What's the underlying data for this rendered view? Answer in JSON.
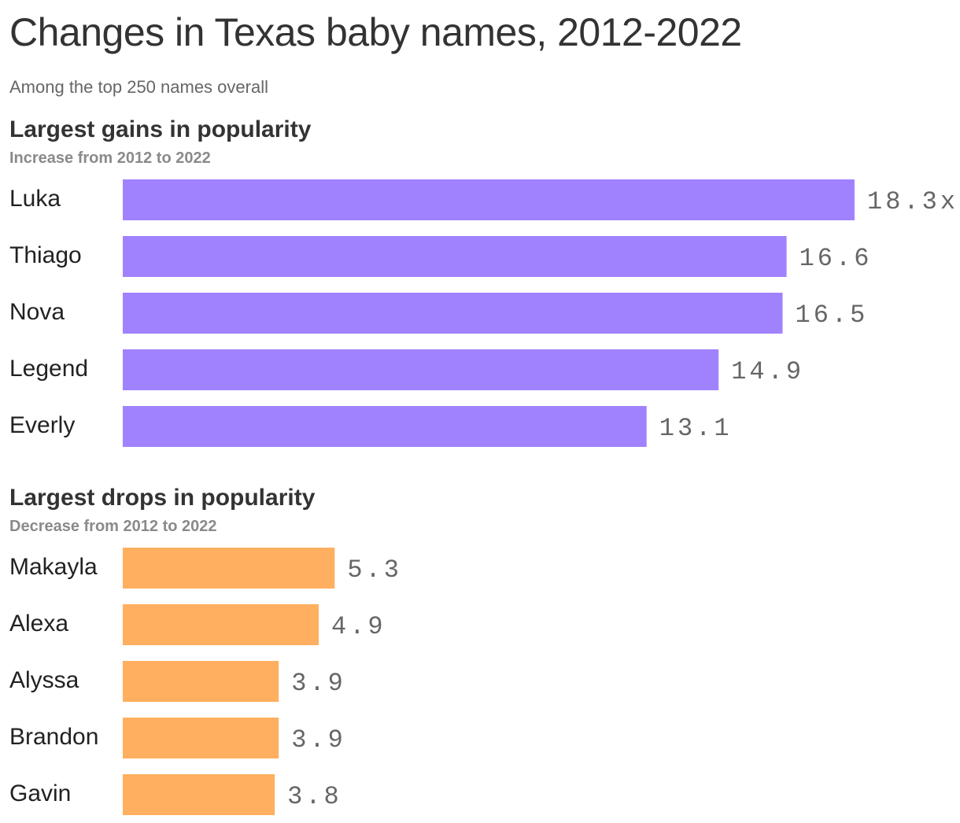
{
  "title": "Changes in Texas baby names, 2012-2022",
  "subtitle": "Among the top 250 names overall",
  "chart_data": [
    {
      "type": "bar",
      "orientation": "horizontal",
      "title": "Largest gains in popularity",
      "subtitle": "Increase from 2012 to 2022",
      "categories": [
        "Luka",
        "Thiago",
        "Nova",
        "Legend",
        "Everly"
      ],
      "values": [
        18.3,
        16.6,
        16.5,
        14.9,
        13.1
      ],
      "value_labels": [
        "18.3x",
        "16.6",
        "16.5",
        "14.9",
        "13.1"
      ],
      "color": "#a082ff",
      "xlim": [
        0,
        18.3
      ],
      "grid": false
    },
    {
      "type": "bar",
      "orientation": "horizontal",
      "title": "Largest drops in popularity",
      "subtitle": "Decrease from 2012 to 2022",
      "categories": [
        "Makayla",
        "Alexa",
        "Alyssa",
        "Brandon",
        "Gavin"
      ],
      "values": [
        5.3,
        4.9,
        3.9,
        3.9,
        3.8
      ],
      "value_labels": [
        "5.3",
        "4.9",
        "3.9",
        "3.9",
        "3.8"
      ],
      "color": "#ffaf5f",
      "xlim": [
        0,
        18.3
      ],
      "grid": false
    }
  ]
}
